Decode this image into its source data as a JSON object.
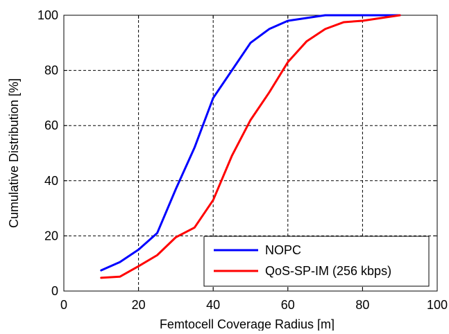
{
  "chart_data": {
    "type": "line",
    "title": "",
    "xlabel": "Femtocell Coverage Radius [m]",
    "ylabel": "Cumulative Distribution [%]",
    "xlim": [
      0,
      100
    ],
    "ylim": [
      0,
      100
    ],
    "xticks": [
      0,
      20,
      40,
      60,
      80,
      100
    ],
    "yticks": [
      0,
      20,
      40,
      60,
      80,
      100
    ],
    "grid": true,
    "legend_position": "bottom-right",
    "series": [
      {
        "name": "NOPC",
        "color": "#0000ff",
        "x": [
          10,
          15,
          20,
          25,
          30,
          35,
          40,
          45,
          50,
          55,
          60,
          65,
          70,
          75,
          80,
          85,
          90
        ],
        "y": [
          7.5,
          10.5,
          15,
          21,
          37,
          52,
          70,
          80,
          90,
          95,
          98,
          99,
          100,
          100,
          100,
          100,
          100
        ]
      },
      {
        "name": "QoS-SP-IM (256 kbps)",
        "color": "#ff0000",
        "x": [
          10,
          15,
          20,
          25,
          30,
          35,
          40,
          45,
          50,
          55,
          60,
          65,
          70,
          75,
          80,
          85,
          90
        ],
        "y": [
          4.8,
          5.2,
          9,
          13,
          19.5,
          23,
          33,
          49,
          62,
          72,
          83,
          90.5,
          95,
          97.5,
          98,
          99,
          100
        ]
      }
    ]
  }
}
